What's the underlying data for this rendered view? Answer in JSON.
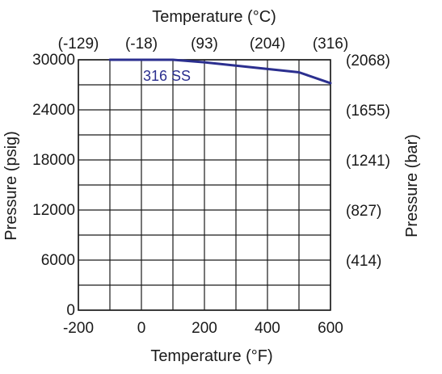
{
  "chart_data": {
    "type": "line",
    "title_top": "Temperature (°C)",
    "xlabel": "Temperature (°F)",
    "ylabel_left": "Pressure (psig)",
    "ylabel_right": "Pressure (bar)",
    "xlim": [
      -200,
      600
    ],
    "ylim": [
      0,
      30000
    ],
    "grid": true,
    "x_ticks": [
      {
        "value": -200,
        "label": "-200"
      },
      {
        "value": 0,
        "label": "0"
      },
      {
        "value": 200,
        "label": "200"
      },
      {
        "value": 400,
        "label": "400"
      },
      {
        "value": 600,
        "label": "600"
      }
    ],
    "x_gridlines": [
      -200,
      -100,
      0,
      100,
      200,
      300,
      400,
      500,
      600
    ],
    "top_ticks": [
      {
        "value": -200,
        "label": "(-129)"
      },
      {
        "value": 0,
        "label": "(-18)"
      },
      {
        "value": 200,
        "label": "(93)"
      },
      {
        "value": 400,
        "label": "(204)"
      },
      {
        "value": 600,
        "label": "(316)"
      }
    ],
    "y_ticks": [
      {
        "value": 0,
        "label": "0"
      },
      {
        "value": 6000,
        "label": "6000"
      },
      {
        "value": 12000,
        "label": "12000"
      },
      {
        "value": 18000,
        "label": "18000"
      },
      {
        "value": 24000,
        "label": "24000"
      },
      {
        "value": 30000,
        "label": "30000"
      }
    ],
    "y_gridlines": [
      0,
      3000,
      6000,
      9000,
      12000,
      15000,
      18000,
      21000,
      24000,
      27000,
      30000
    ],
    "right_ticks": [
      {
        "value": 6000,
        "label": "(414)"
      },
      {
        "value": 12000,
        "label": "(827)"
      },
      {
        "value": 18000,
        "label": "(1241)"
      },
      {
        "value": 24000,
        "label": "(1655)"
      },
      {
        "value": 30000,
        "label": "(2068)"
      }
    ],
    "series": [
      {
        "name": "316 SS",
        "color": "#2b2f8f",
        "x": [
          -100,
          100,
          200,
          300,
          400,
          500,
          600
        ],
        "y": [
          30000,
          30000,
          29700,
          29300,
          28900,
          28500,
          27200
        ]
      }
    ]
  }
}
